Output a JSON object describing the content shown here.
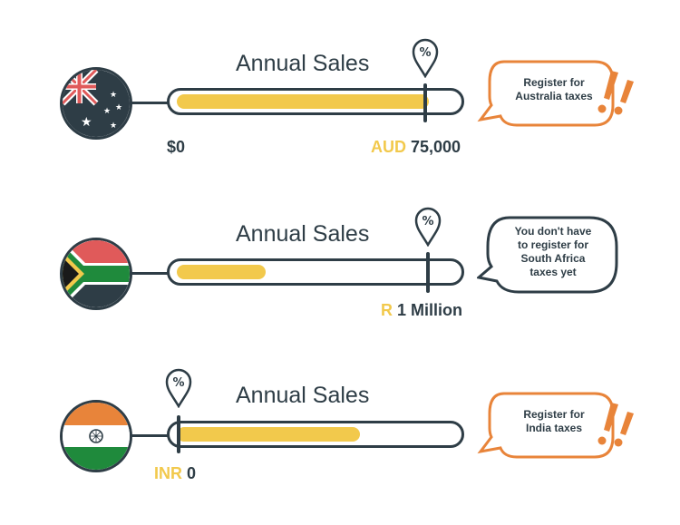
{
  "rows": [
    {
      "title": "Annual Sales",
      "fill_fraction": 0.91,
      "threshold_fraction": 0.88,
      "labels": [
        {
          "currency": "",
          "amount": "$0"
        },
        {
          "currency": "AUD",
          "amount": "75,000"
        }
      ],
      "bubble": {
        "lines": [
          "Register for",
          "Australia taxes"
        ]
      },
      "flag": "australia-flag"
    },
    {
      "title": "Annual Sales",
      "fill_fraction": 0.32,
      "threshold_fraction": 0.88,
      "labels": [
        {
          "currency": "R",
          "amount": "1 Million"
        }
      ],
      "bubble": {
        "lines": [
          "You don't have",
          "to register for",
          "South Africa",
          "taxes yet"
        ]
      },
      "flag": "south-africa-flag"
    },
    {
      "title": "Annual Sales",
      "fill_fraction": 0.66,
      "threshold_fraction": 0.02,
      "labels": [
        {
          "currency": "INR",
          "amount": "0"
        }
      ],
      "bubble": {
        "lines": [
          "Register for",
          "India taxes"
        ]
      },
      "flag": "india-flag"
    }
  ],
  "colors": {
    "accent": "#f2c94c",
    "dark": "#2e3d46",
    "warning": "#e8843a"
  },
  "icons": {
    "pin": "percent-pin-icon",
    "exclaim": "exclamation-icon"
  }
}
